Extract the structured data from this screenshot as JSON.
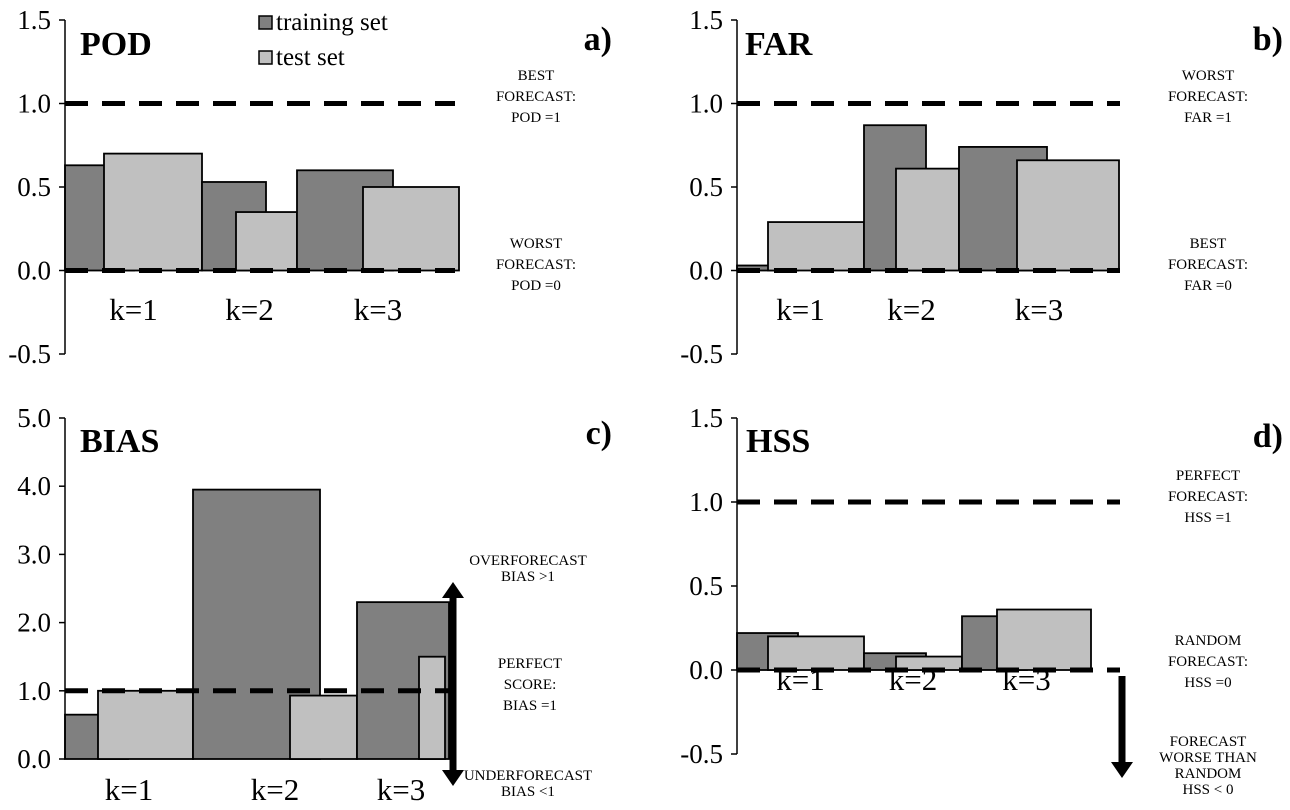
{
  "colors": {
    "training": "#808080",
    "test": "#c0c0c0",
    "stroke": "#000000"
  },
  "legend": {
    "training_label": "training set",
    "test_label": "test set"
  },
  "chart_data": [
    {
      "type": "bar",
      "panel_label": "a)",
      "title": "POD",
      "categories": [
        "k=1",
        "k=2",
        "k=3"
      ],
      "ylim": [
        -0.5,
        1.5
      ],
      "yticks": [
        "-0.5",
        "0.0",
        "0.5",
        "1.0",
        "1.5"
      ],
      "series": [
        {
          "name": "training set",
          "values": [
            0.63,
            0.53,
            0.6
          ]
        },
        {
          "name": "test set",
          "values": [
            0.7,
            0.35,
            0.5
          ]
        }
      ],
      "reference_lines": [
        {
          "y": 1.0,
          "label": [
            "BEST",
            "FORECAST:",
            "POD =1"
          ]
        },
        {
          "y": 0.0,
          "label": [
            "WORST",
            "FORECAST:",
            "POD =0"
          ]
        }
      ]
    },
    {
      "type": "bar",
      "panel_label": "b)",
      "title": "FAR",
      "categories": [
        "k=1",
        "k=2",
        "k=3"
      ],
      "ylim": [
        -0.5,
        1.5
      ],
      "yticks": [
        "-0.5",
        "0.0",
        "0.5",
        "1.0",
        "1.5"
      ],
      "series": [
        {
          "name": "training set",
          "values": [
            0.03,
            0.87,
            0.74
          ]
        },
        {
          "name": "test set",
          "values": [
            0.29,
            0.61,
            0.66
          ]
        }
      ],
      "reference_lines": [
        {
          "y": 1.0,
          "label": [
            "WORST",
            "FORECAST:",
            "FAR =1"
          ]
        },
        {
          "y": 0.0,
          "label": [
            "BEST",
            "FORECAST:",
            "FAR =0"
          ]
        }
      ]
    },
    {
      "type": "bar",
      "panel_label": "c)",
      "title": "BIAS",
      "categories": [
        "k=1",
        "k=2",
        "k=3"
      ],
      "ylim": [
        0.0,
        5.0
      ],
      "yticks": [
        "0.0",
        "1.0",
        "2.0",
        "3.0",
        "4.0",
        "5.0"
      ],
      "series": [
        {
          "name": "training set",
          "values": [
            0.65,
            3.95,
            2.3
          ]
        },
        {
          "name": "test set",
          "values": [
            1.0,
            0.93,
            1.5
          ]
        }
      ],
      "reference_lines": [
        {
          "y": 1.0,
          "label": [
            "PERFECT",
            "SCORE:",
            "BIAS =1"
          ]
        }
      ],
      "arrows": [
        {
          "direction": "up",
          "label": [
            "OVERFORECAST",
            "BIAS >1"
          ]
        },
        {
          "direction": "down",
          "label": [
            "UNDERFORECAST",
            "BIAS <1"
          ]
        }
      ]
    },
    {
      "type": "bar",
      "panel_label": "d)",
      "title": "HSS",
      "categories": [
        "k=1",
        "k=2",
        "k=3"
      ],
      "ylim": [
        -0.5,
        1.5
      ],
      "yticks": [
        "-0.5",
        "0.0",
        "0.5",
        "1.0",
        "1.5"
      ],
      "series": [
        {
          "name": "training set",
          "values": [
            0.22,
            0.1,
            0.32
          ]
        },
        {
          "name": "test set",
          "values": [
            0.2,
            0.08,
            0.36
          ]
        }
      ],
      "reference_lines": [
        {
          "y": 1.0,
          "label": [
            "PERFECT",
            "FORECAST:",
            "HSS =1"
          ]
        },
        {
          "y": 0.0,
          "label": [
            "RANDOM",
            "FORECAST:",
            "HSS =0"
          ]
        }
      ],
      "arrows": [
        {
          "direction": "down",
          "label": [
            "FORECAST",
            "WORSE THAN",
            "RANDOM",
            "HSS < 0"
          ]
        }
      ]
    }
  ]
}
